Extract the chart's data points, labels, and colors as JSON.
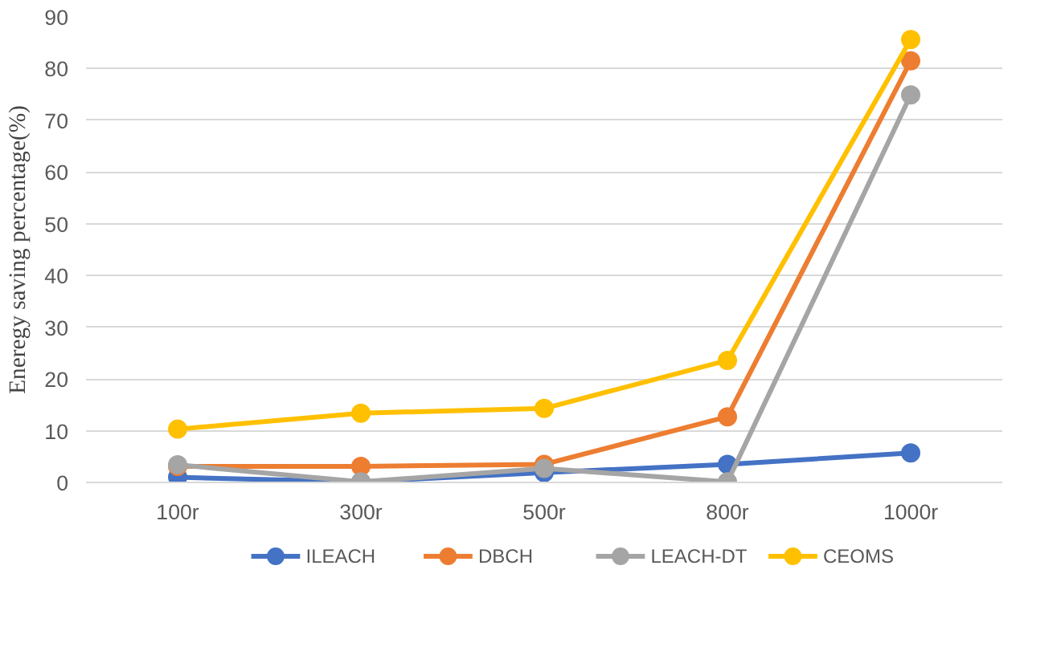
{
  "chart_data": {
    "type": "line",
    "ylabel": "Eneregy saving percentage(%)",
    "categories": [
      "100r",
      "300r",
      "500r",
      "800r",
      "1000r"
    ],
    "series": [
      {
        "name": "ILEACH",
        "color": "#4472c4",
        "values": [
          1.0,
          0.1,
          1.9,
          3.5,
          5.7
        ]
      },
      {
        "name": "DBCH",
        "color": "#ed7d31",
        "values": [
          3.1,
          3.1,
          3.5,
          12.7,
          81.5
        ]
      },
      {
        "name": "LEACH-DT",
        "color": "#a5a5a5",
        "values": [
          3.4,
          0.1,
          2.7,
          0.1,
          74.9
        ]
      },
      {
        "name": "CEOMS",
        "color": "#ffc000",
        "values": [
          10.3,
          13.4,
          14.3,
          23.6,
          85.6
        ]
      }
    ],
    "ylim": [
      0,
      90
    ],
    "yticks": [
      0,
      10,
      20,
      30,
      40,
      50,
      60,
      70,
      80,
      90
    ],
    "grid": "y",
    "legend": "bottom",
    "marker": "circle",
    "line_style": "solid"
  }
}
